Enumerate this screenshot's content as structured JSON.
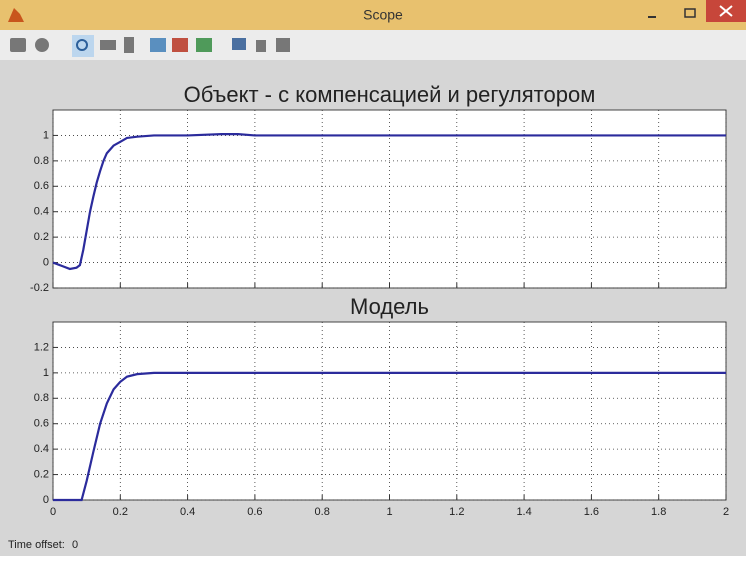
{
  "window": {
    "title": "Scope"
  },
  "footer": {
    "label": "Time offset:",
    "value": 0
  },
  "chart_data": [
    {
      "type": "line",
      "title": "Объект - с компенсацией и регулятором",
      "x": [
        0,
        0.03,
        0.05,
        0.07,
        0.08,
        0.09,
        0.1,
        0.11,
        0.12,
        0.13,
        0.14,
        0.15,
        0.16,
        0.18,
        0.2,
        0.22,
        0.25,
        0.3,
        0.4,
        0.5,
        0.55,
        0.6,
        0.7,
        1,
        2
      ],
      "values": [
        0,
        -0.03,
        -0.05,
        -0.04,
        -0.02,
        0.1,
        0.25,
        0.4,
        0.52,
        0.63,
        0.72,
        0.8,
        0.86,
        0.92,
        0.95,
        0.98,
        0.99,
        1,
        1,
        1.01,
        1.01,
        1,
        1,
        1,
        1
      ],
      "color": "#2b2b9c",
      "xlim": [
        0,
        2
      ],
      "ylim": [
        -0.2,
        1.2
      ],
      "xticks": [
        0,
        0.2,
        0.4,
        0.6,
        0.8,
        1,
        1.2,
        1.4,
        1.6,
        1.8,
        2
      ],
      "xtick_labels": false,
      "yticks": [
        -0.2,
        0,
        0.2,
        0.4,
        0.6,
        0.8,
        1
      ],
      "grid": true
    },
    {
      "type": "line",
      "title": "Модель",
      "x": [
        0,
        0.085,
        0.1,
        0.12,
        0.14,
        0.16,
        0.18,
        0.2,
        0.22,
        0.25,
        0.3,
        2
      ],
      "values": [
        0,
        0,
        0.15,
        0.38,
        0.6,
        0.76,
        0.87,
        0.93,
        0.97,
        0.99,
        1,
        1
      ],
      "color": "#2b2b9c",
      "xlim": [
        0,
        2
      ],
      "ylim": [
        0,
        1.4
      ],
      "xticks": [
        0,
        0.2,
        0.4,
        0.6,
        0.8,
        1,
        1.2,
        1.4,
        1.6,
        1.8,
        2
      ],
      "xtick_labels": true,
      "yticks": [
        0,
        0.2,
        0.4,
        0.6,
        0.8,
        1,
        1.2
      ],
      "grid": true
    }
  ]
}
